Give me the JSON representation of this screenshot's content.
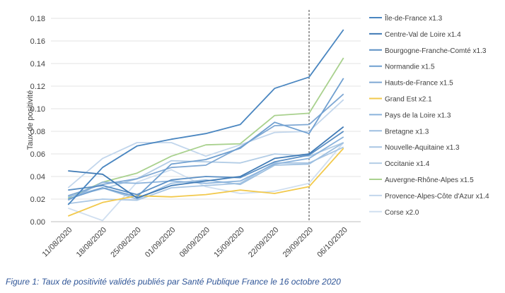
{
  "caption": "Figure 1: Taux de positivité validés publiés par Santé Publique France le 16 octobre 2020",
  "chart_data": {
    "type": "line",
    "ylabel": "Taux de positivité",
    "xlabel": "",
    "ylim": [
      0,
      0.18
    ],
    "yticks": [
      0.0,
      0.02,
      0.04,
      0.06,
      0.08,
      0.1,
      0.12,
      0.14,
      0.16,
      0.18
    ],
    "ytick_labels": [
      "0.00",
      "0.02",
      "0.04",
      "0.06",
      "0.08",
      "0.10",
      "0.12",
      "0.14",
      "0.16",
      "0.18"
    ],
    "categories": [
      "11/08/2020",
      "18/08/2020",
      "25/08/2020",
      "01/09/2020",
      "08/09/2020",
      "15/09/2020",
      "22/09/2020",
      "29/09/2020",
      "06/10/2020"
    ],
    "vertical_marker_at": "29/09/2020",
    "grid": "horizontal",
    "legend_position": "right",
    "series": [
      {
        "name": "Île-de-France x1.3",
        "color": "#4a86c0",
        "values": [
          0.015,
          0.048,
          0.067,
          0.073,
          0.078,
          0.086,
          0.118,
          0.128,
          0.17
        ]
      },
      {
        "name": "Centre-Val de Loire x1.4",
        "color": "#3f7ab5",
        "values": [
          0.045,
          0.042,
          0.021,
          0.032,
          0.036,
          0.04,
          0.056,
          0.06,
          0.084
        ]
      },
      {
        "name": "Bourgogne-Franche-Comté x1.3",
        "color": "#5b8fc4",
        "values": [
          0.028,
          0.032,
          0.024,
          0.037,
          0.04,
          0.039,
          0.053,
          0.059,
          0.08
        ]
      },
      {
        "name": "Normandie x1.5",
        "color": "#6f9fd0",
        "values": [
          0.02,
          0.03,
          0.022,
          0.051,
          0.055,
          0.065,
          0.088,
          0.078,
          0.127
        ]
      },
      {
        "name": "Hauts-de-France x1.5",
        "color": "#7fa8d4",
        "values": [
          0.023,
          0.033,
          0.038,
          0.048,
          0.05,
          0.066,
          0.085,
          0.086,
          0.113
        ]
      },
      {
        "name": "Grand Est x2.1",
        "color": "#f2c94c",
        "values": [
          0.005,
          0.017,
          0.023,
          0.022,
          0.024,
          0.028,
          0.025,
          0.031,
          0.065
        ]
      },
      {
        "name": "Pays de la Loire x1.3",
        "color": "#8bb3dc",
        "values": [
          0.019,
          0.035,
          0.034,
          0.036,
          0.034,
          0.036,
          0.051,
          0.056,
          0.075
        ]
      },
      {
        "name": "Bretagne x1.3",
        "color": "#9dbfe0",
        "values": [
          0.022,
          0.03,
          0.02,
          0.034,
          0.037,
          0.033,
          0.05,
          0.051,
          0.07
        ]
      },
      {
        "name": "Nouvelle-Aquitaine x1.3",
        "color": "#a9c6e4",
        "values": [
          0.016,
          0.02,
          0.019,
          0.03,
          0.032,
          0.034,
          0.052,
          0.052,
          0.066
        ]
      },
      {
        "name": "Occitanie x1.4",
        "color": "#b3cde6",
        "values": [
          0.022,
          0.029,
          0.038,
          0.054,
          0.053,
          0.052,
          0.06,
          0.058,
          0.07
        ]
      },
      {
        "name": "Auvergne-Rhône-Alpes x1.5",
        "color": "#a9d18e",
        "values": [
          0.021,
          0.035,
          0.043,
          0.058,
          0.068,
          0.069,
          0.094,
          0.096,
          0.145
        ]
      },
      {
        "name": "Provence-Alpes-Côte d'Azur x1.4",
        "color": "#c2d6ec",
        "values": [
          0.03,
          0.056,
          0.07,
          0.07,
          0.058,
          0.068,
          0.079,
          0.08,
          0.108
        ]
      },
      {
        "name": "Corse x2.0",
        "color": "#d0dff0",
        "values": [
          0.012,
          0.001,
          0.035,
          0.046,
          0.031,
          0.025,
          0.027,
          0.034,
          0.07
        ]
      }
    ]
  }
}
